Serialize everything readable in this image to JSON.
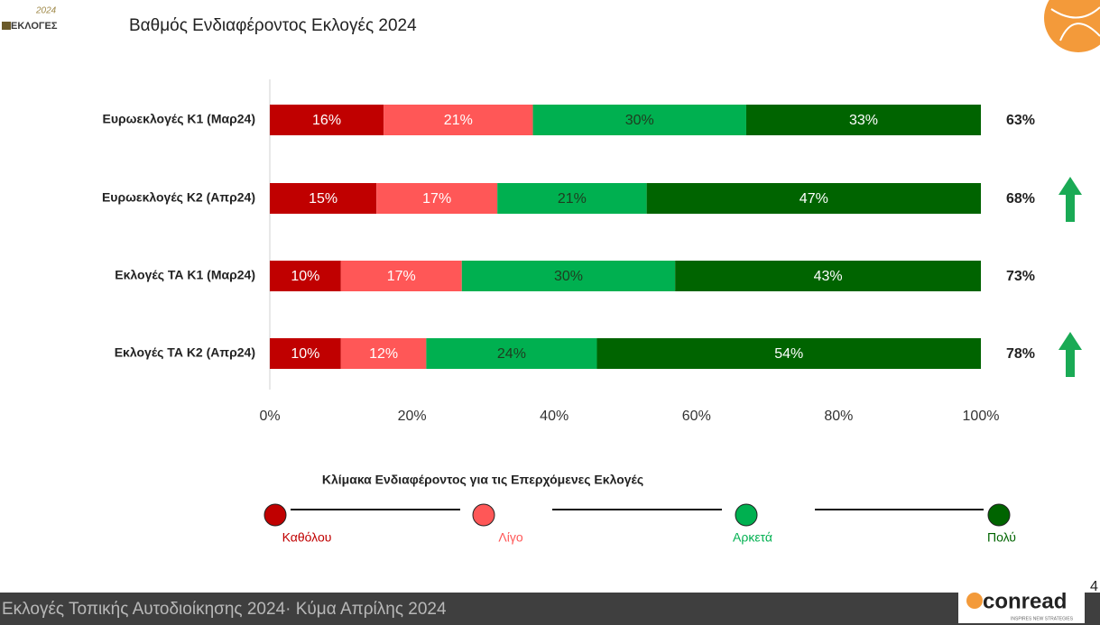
{
  "header": {
    "logo_year": "2024",
    "logo_text": "ΕΚΛΟΓΕΣ",
    "title": "Βαθμός Ενδιαφέροντος Εκλογές 2024"
  },
  "chart_data": {
    "type": "stacked_bar_horizontal",
    "categories": [
      "Ευρωεκλογές Κ1 (Μαρ24)",
      "Ευρωεκλογές Κ2 (Απρ24)",
      "Εκλογές ΤΑ Κ1 (Μαρ24)",
      "Εκλογές ΤΑ Κ2 (Απρ24)"
    ],
    "series": [
      {
        "name": "Καθόλου",
        "color": "#c00000",
        "label_color": "#ffffff",
        "values": [
          16,
          15,
          10,
          10
        ],
        "value_labels": [
          "16%",
          "15%",
          "10%",
          "10%"
        ]
      },
      {
        "name": "Λίγο",
        "color": "#ff5757",
        "label_color": "#ffffff",
        "values": [
          21,
          17,
          17,
          12
        ],
        "value_labels": [
          "21%",
          "17%",
          "17%",
          "12%"
        ]
      },
      {
        "name": "Αρκετά",
        "color": "#00b050",
        "label_color": "#1f3b1f",
        "values": [
          30,
          21,
          30,
          24
        ],
        "value_labels": [
          "30%",
          "21%",
          "30%",
          "24%"
        ]
      },
      {
        "name": "Πολύ",
        "color": "#006400",
        "label_color": "#ffffff",
        "values": [
          33,
          47,
          43,
          54
        ],
        "value_labels": [
          "33%",
          "47%",
          "43%",
          "54%"
        ]
      }
    ],
    "totals": {
      "values": [
        63,
        68,
        73,
        78
      ],
      "value_labels": [
        "63%",
        "68%",
        "73%",
        "78%"
      ],
      "up_arrows": [
        false,
        true,
        false,
        true
      ],
      "arrow_color": "#1aaa55"
    },
    "xlim": [
      0,
      100
    ],
    "xticks": [
      {
        "value": 0,
        "label": "0%"
      },
      {
        "value": 20,
        "label": "20%"
      },
      {
        "value": 40,
        "label": "40%"
      },
      {
        "value": 60,
        "label": "60%"
      },
      {
        "value": 80,
        "label": "80%"
      },
      {
        "value": 100,
        "label": "100%"
      }
    ],
    "legend_title": "Κλίμακα Ενδιαφέροντος για τις Επερχόμενες Εκλογές"
  },
  "footer": {
    "text": "Εκλογές Τοπικής Αυτοδιοίκησης 2024· Κύμα Απρίλης 2024",
    "brand": "conread",
    "brand_tagline": "INSPIRES NEW STRATEGIES",
    "page_number": "4"
  }
}
